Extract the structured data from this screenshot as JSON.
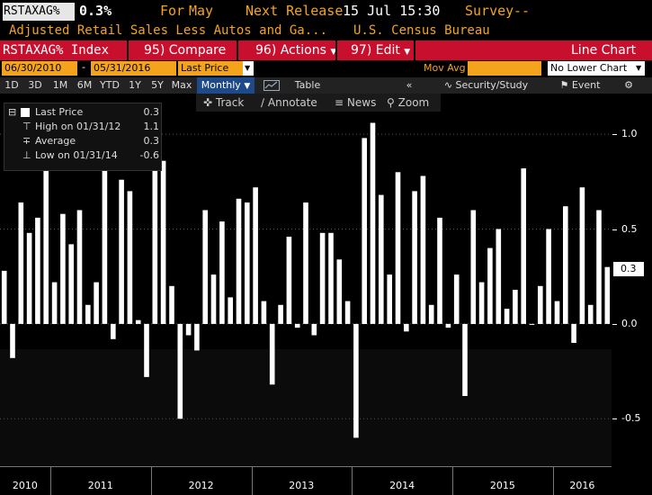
{
  "header": {
    "ticker": "RSTAXAG%",
    "value": "0.3%",
    "for_label": "For",
    "for_period": "May",
    "next_release_label": "Next Release",
    "next_release": "15 Jul 15:30",
    "survey_label": "Survey",
    "survey_value": "--",
    "description": "Adjusted Retail Sales Less Autos and Ga...",
    "source": "U.S. Census Bureau"
  },
  "menu": {
    "security": "RSTAXAG% Index",
    "compare": "95) Compare",
    "actions": "96) Actions",
    "edit": "97) Edit",
    "chart_type": "Line Chart"
  },
  "range": {
    "start": "06/30/2010",
    "dash": "-",
    "end": "05/31/2016",
    "field": "Last Price",
    "study": "Mov Avg",
    "lower_chart": "No Lower Chart"
  },
  "periods": [
    "1D",
    "3D",
    "1M",
    "6M",
    "YTD",
    "1Y",
    "5Y",
    "Max"
  ],
  "frequency": "Monthly",
  "table_label": "Table",
  "security_study": "Security/Study",
  "event_label": "Event",
  "tools": {
    "track": "Track",
    "annotate": "Annotate",
    "news": "News",
    "zoom": "Zoom"
  },
  "legend": {
    "last_label": "Last Price",
    "last_value": "0.3",
    "high_label": "High on 01/31/12",
    "high_value": "1.1",
    "avg_label": "Average",
    "avg_value": "0.3",
    "low_label": "Low on 01/31/14",
    "low_value": "-0.6"
  },
  "last_badge": "0.3",
  "colors": {
    "amber": "#f4a41c",
    "red_bar": "#c8102e",
    "bars": "#ffffff"
  },
  "chart_data": {
    "type": "bar",
    "ylim": [
      -0.75,
      1.2
    ],
    "yticks": [
      "1.0",
      "0.5",
      "0.0",
      "-0.5"
    ],
    "ytick_values": [
      1.0,
      0.5,
      0.0,
      -0.5
    ],
    "x_labels": [
      "2010",
      "2011",
      "2012",
      "2013",
      "2014",
      "2015",
      "2016"
    ],
    "values": [
      0.28,
      -0.18,
      0.64,
      0.48,
      0.56,
      0.86,
      0.22,
      0.58,
      0.42,
      0.6,
      0.1,
      0.22,
      0.9,
      -0.08,
      0.76,
      0.7,
      0.02,
      -0.28,
      1.1,
      0.86,
      0.2,
      -0.5,
      -0.06,
      -0.14,
      0.6,
      0.26,
      0.54,
      0.14,
      0.66,
      0.64,
      0.72,
      0.12,
      -0.32,
      0.1,
      0.46,
      -0.02,
      0.64,
      -0.06,
      0.48,
      0.48,
      0.34,
      0.12,
      -0.6,
      0.98,
      1.06,
      0.68,
      0.26,
      0.8,
      -0.04,
      0.7,
      0.78,
      0.1,
      0.56,
      -0.02,
      0.26,
      -0.38,
      0.6,
      0.22,
      0.4,
      0.5,
      0.08,
      0.18,
      0.82,
      0.0,
      0.2,
      0.5,
      0.12,
      0.62,
      -0.1,
      0.72,
      0.1,
      0.6,
      0.3
    ]
  }
}
